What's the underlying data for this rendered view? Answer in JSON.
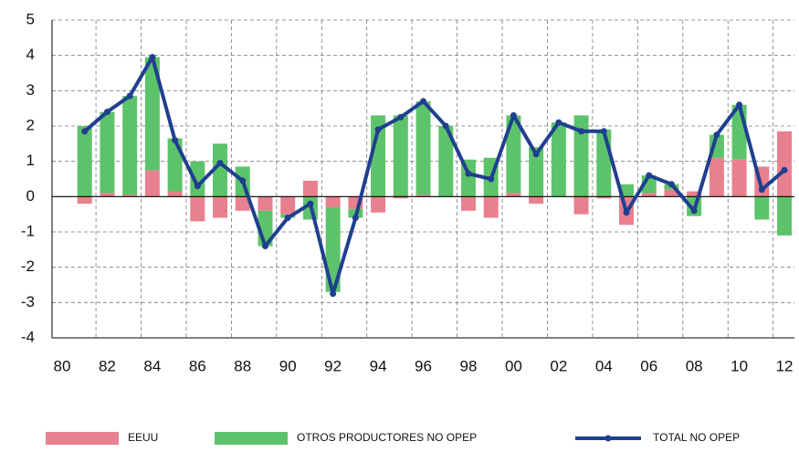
{
  "chart_data": {
    "type": "bar+line",
    "categories": [
      "80",
      null,
      "82",
      null,
      "84",
      null,
      "86",
      null,
      "88",
      null,
      "90",
      null,
      "92",
      null,
      "94",
      null,
      "96",
      null,
      "98",
      null,
      "00",
      null,
      "02",
      null,
      "04",
      null,
      "06",
      null,
      "08",
      null,
      "10",
      null,
      "12"
    ],
    "series": [
      {
        "name": "EEUU",
        "type": "bar",
        "color": "#e8808f",
        "values": [
          null,
          -0.2,
          0.1,
          0.05,
          0.75,
          0.15,
          -0.7,
          -0.6,
          -0.4,
          -0.4,
          -0.5,
          0.45,
          -0.3,
          -0.35,
          -0.45,
          -0.05,
          0.05,
          0.0,
          -0.4,
          -0.6,
          0.1,
          -0.2,
          0.0,
          -0.5,
          -0.05,
          -0.8,
          0.1,
          0.2,
          0.15,
          1.1,
          1.05,
          0.85,
          1.85
        ]
      },
      {
        "name": "OTROS PRODUCTORES NO OPEP",
        "type": "bar",
        "color": "#5dc36a",
        "values": [
          null,
          2.0,
          2.3,
          2.8,
          3.2,
          1.5,
          1.0,
          1.5,
          0.85,
          -1.0,
          -0.1,
          -0.65,
          -2.4,
          -0.25,
          2.3,
          2.3,
          2.65,
          2.0,
          1.05,
          1.1,
          2.2,
          1.4,
          2.1,
          2.3,
          1.9,
          0.35,
          0.5,
          0.15,
          -0.55,
          0.65,
          1.55,
          -0.65,
          -1.1
        ]
      },
      {
        "name": "TOTAL NO OPEP",
        "type": "line",
        "color": "#1f3f8f",
        "values": [
          null,
          1.85,
          2.4,
          2.85,
          3.95,
          1.6,
          0.3,
          0.95,
          0.45,
          -1.4,
          -0.6,
          -0.2,
          -2.75,
          -0.6,
          1.9,
          2.25,
          2.7,
          2.0,
          0.65,
          0.5,
          2.3,
          1.2,
          2.1,
          1.85,
          1.85,
          -0.45,
          0.6,
          0.35,
          -0.4,
          1.75,
          2.6,
          0.2,
          0.75
        ]
      }
    ],
    "ylim": [
      -4,
      5
    ],
    "yticks": [
      -4,
      -3,
      -2,
      -1,
      0,
      1,
      2,
      3,
      4,
      5
    ],
    "grid": true,
    "legend": "bottom"
  }
}
